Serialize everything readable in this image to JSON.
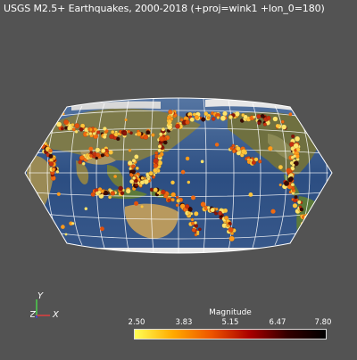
{
  "title": "USGS M2.5+ Earthquakes, 2000-2018 (+proj=wink1 +lon_0=180)",
  "projection": "Winkel I, centered on 180° longitude",
  "background_color": "#535353",
  "axes": {
    "y_label": "Y",
    "z_label": "Z",
    "x_label": "X"
  },
  "colorbar": {
    "title": "Magnitude",
    "ticks": [
      "2.50",
      "3.83",
      "5.15",
      "6.47",
      "7.80"
    ],
    "range": [
      2.5,
      7.8
    ],
    "colors": [
      "#ffff55",
      "#ffaa00",
      "#ee5500",
      "#aa0000",
      "#330000",
      "#000000"
    ]
  },
  "map_icon": "earth-map",
  "legend_icon": "axes-orientation-icon"
}
